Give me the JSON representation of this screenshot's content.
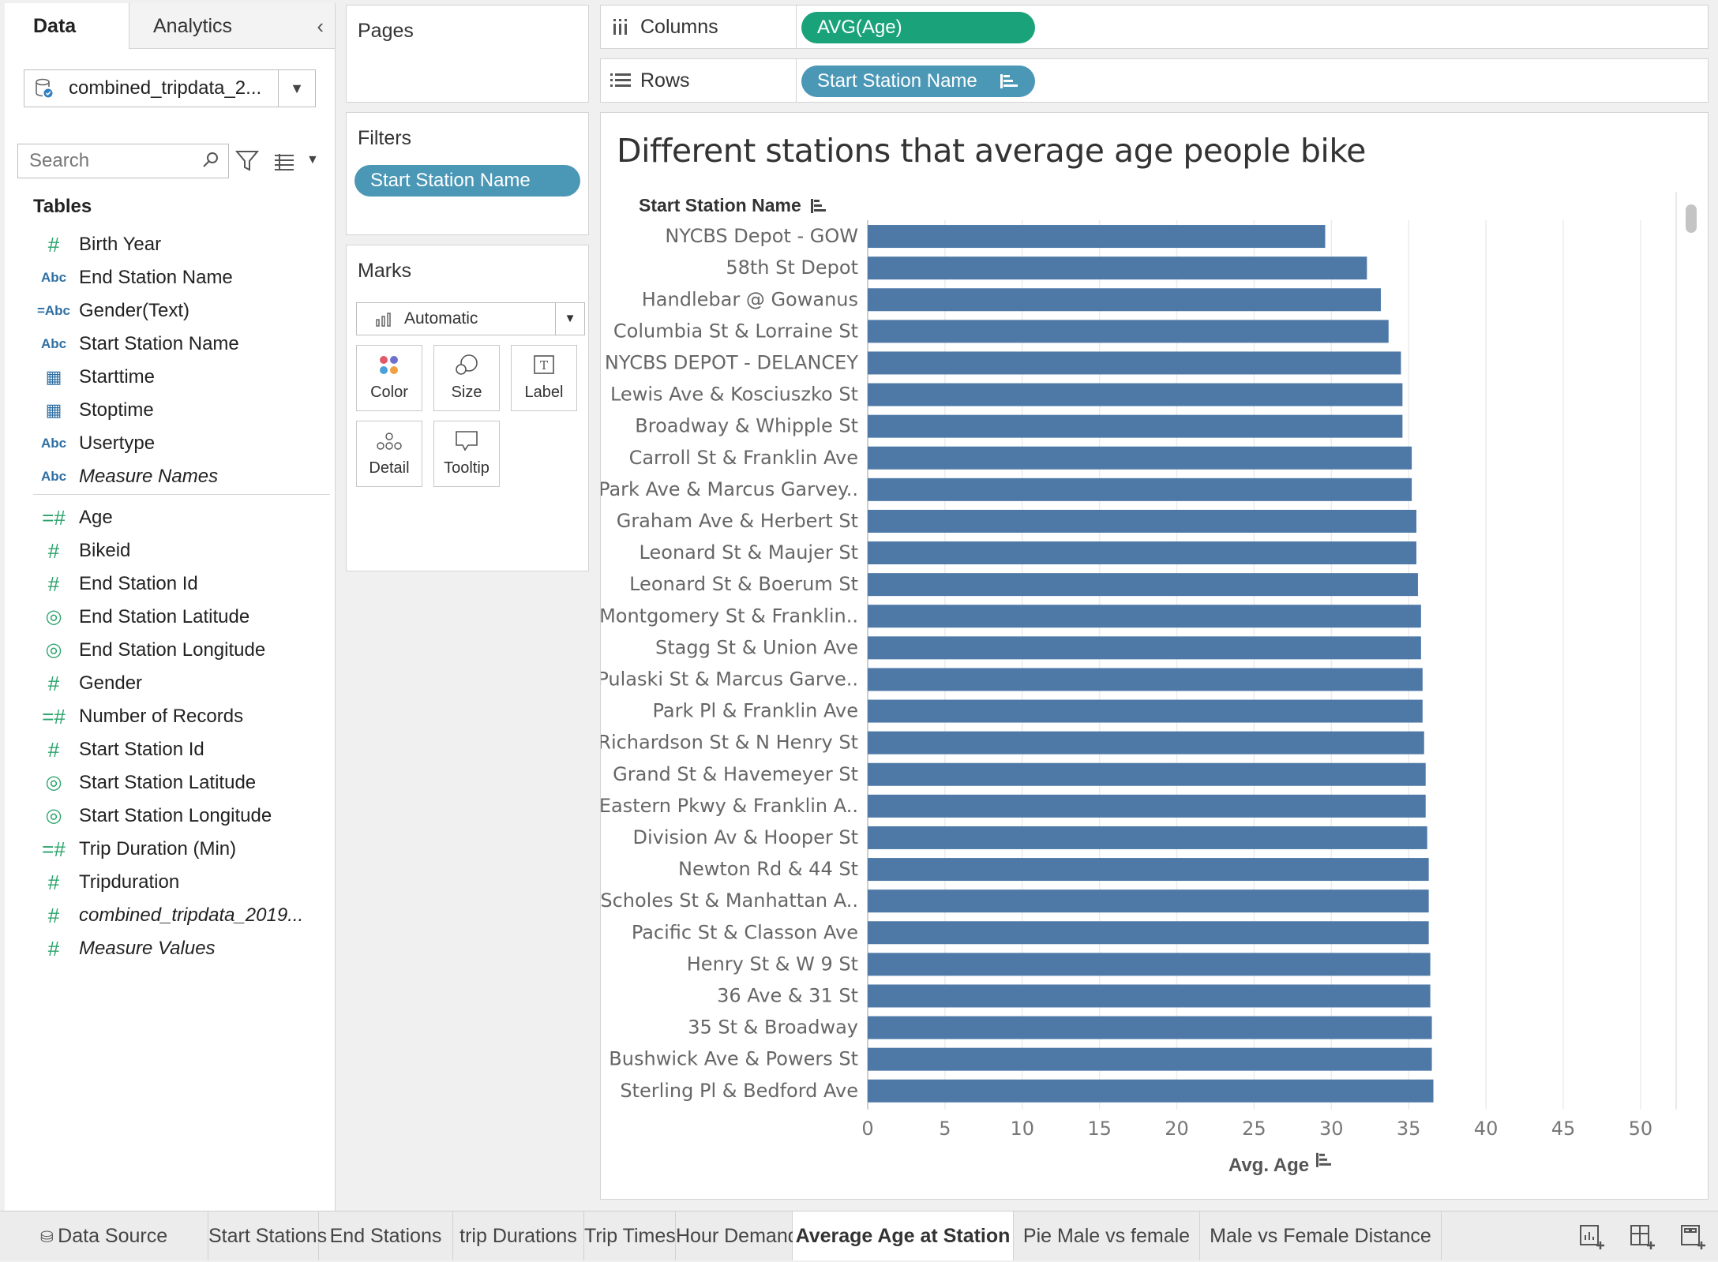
{
  "data_pane": {
    "tab_data": "Data",
    "tab_analytics": "Analytics",
    "datasource": "combined_tripdata_2...",
    "search_placeholder": "Search",
    "tables_heading": "Tables",
    "dimensions": [
      {
        "icon": "#",
        "label": "Birth Year",
        "type": "num"
      },
      {
        "icon": "Abc",
        "label": "End Station Name",
        "type": "abc"
      },
      {
        "icon": "=Abc",
        "label": "Gender(Text)",
        "type": "abc"
      },
      {
        "icon": "Abc",
        "label": "Start Station Name",
        "type": "abc"
      },
      {
        "icon": "calendar-time",
        "label": "Starttime",
        "type": "date"
      },
      {
        "icon": "calendar-time",
        "label": "Stoptime",
        "type": "date"
      },
      {
        "icon": "Abc",
        "label": "Usertype",
        "type": "abc"
      },
      {
        "icon": "Abc",
        "label": "Measure Names",
        "type": "abc",
        "italic": true
      }
    ],
    "measures": [
      {
        "icon": "=#",
        "label": "Age",
        "type": "num"
      },
      {
        "icon": "#",
        "label": "Bikeid",
        "type": "num"
      },
      {
        "icon": "#",
        "label": "End Station Id",
        "type": "num"
      },
      {
        "icon": "globe",
        "label": "End Station Latitude",
        "type": "geo"
      },
      {
        "icon": "globe",
        "label": "End Station Longitude",
        "type": "geo"
      },
      {
        "icon": "#",
        "label": "Gender",
        "type": "num"
      },
      {
        "icon": "=#",
        "label": "Number of Records",
        "type": "num"
      },
      {
        "icon": "#",
        "label": "Start Station Id",
        "type": "num"
      },
      {
        "icon": "globe",
        "label": "Start Station Latitude",
        "type": "geo"
      },
      {
        "icon": "globe",
        "label": "Start Station Longitude",
        "type": "geo"
      },
      {
        "icon": "=#",
        "label": "Trip Duration (Min)",
        "type": "num"
      },
      {
        "icon": "#",
        "label": "Tripduration",
        "type": "num"
      },
      {
        "icon": "#",
        "label": "combined_tripdata_2019...",
        "type": "num",
        "italic": true
      },
      {
        "icon": "#",
        "label": "Measure Values",
        "type": "num",
        "italic": true
      }
    ]
  },
  "shelves": {
    "pages": "Pages",
    "filters": "Filters",
    "filter_pill": "Start Station Name",
    "marks": "Marks",
    "mark_type": "Automatic",
    "mark_buttons": [
      "Color",
      "Size",
      "Label",
      "Detail",
      "Tooltip"
    ],
    "columns_label": "Columns",
    "columns_pill": "AVG(Age)",
    "rows_label": "Rows",
    "rows_pill": "Start Station Name"
  },
  "viz": {
    "title": "Different stations that average age people bike",
    "row_header": "Start Station Name",
    "x_axis_title": "Avg. Age"
  },
  "chart_data": {
    "type": "bar",
    "orientation": "horizontal",
    "title": "Different stations that average age people bike",
    "xlabel": "Avg. Age",
    "ylabel": "Start Station Name",
    "xlim": [
      0,
      52
    ],
    "xticks": [
      0,
      5,
      10,
      15,
      20,
      25,
      30,
      35,
      40,
      45,
      50
    ],
    "grid": true,
    "bar_color": "#4e79a7",
    "categories": [
      "NYCBS Depot - GOW",
      "58th St Depot",
      "Handlebar @ Gowanus",
      "Columbia St & Lorraine St",
      "NYCBS DEPOT - DELANCEY",
      "Lewis Ave & Kosciuszko St",
      "Broadway & Whipple St",
      "Carroll St & Franklin Ave",
      "Park Ave & Marcus Garvey..",
      "Graham Ave & Herbert St",
      "Leonard St & Maujer St",
      "Leonard St & Boerum St",
      "Montgomery St & Franklin..",
      "Stagg St & Union Ave",
      "Pulaski St & Marcus Garve..",
      "Park Pl & Franklin Ave",
      "Richardson St & N Henry St",
      "Grand St & Havemeyer St",
      "Eastern Pkwy & Franklin A..",
      "Division Av & Hooper St",
      "Newton Rd & 44 St",
      "Scholes St & Manhattan A..",
      "Pacific St & Classon Ave",
      "Henry St & W 9 St",
      "36 Ave & 31 St",
      "35 St & Broadway",
      "Bushwick Ave & Powers St",
      "Sterling Pl & Bedford Ave"
    ],
    "values": [
      29.6,
      32.3,
      33.2,
      33.7,
      34.5,
      34.6,
      34.6,
      35.2,
      35.2,
      35.5,
      35.5,
      35.6,
      35.8,
      35.8,
      35.9,
      35.9,
      36.0,
      36.1,
      36.1,
      36.2,
      36.3,
      36.3,
      36.3,
      36.4,
      36.4,
      36.5,
      36.5,
      36.6
    ]
  },
  "sheet_tabs": [
    {
      "label": "Data Source",
      "active": false
    },
    {
      "label": "Start Stations",
      "active": false
    },
    {
      "label": "End Stations",
      "active": false
    },
    {
      "label": "trip Durations",
      "active": false
    },
    {
      "label": "Trip Times",
      "active": false
    },
    {
      "label": "Hour Demand",
      "active": false
    },
    {
      "label": "Average Age at Station",
      "active": true
    },
    {
      "label": "Pie Male vs female",
      "active": false
    },
    {
      "label": "Male vs Female Distance",
      "active": false
    }
  ]
}
